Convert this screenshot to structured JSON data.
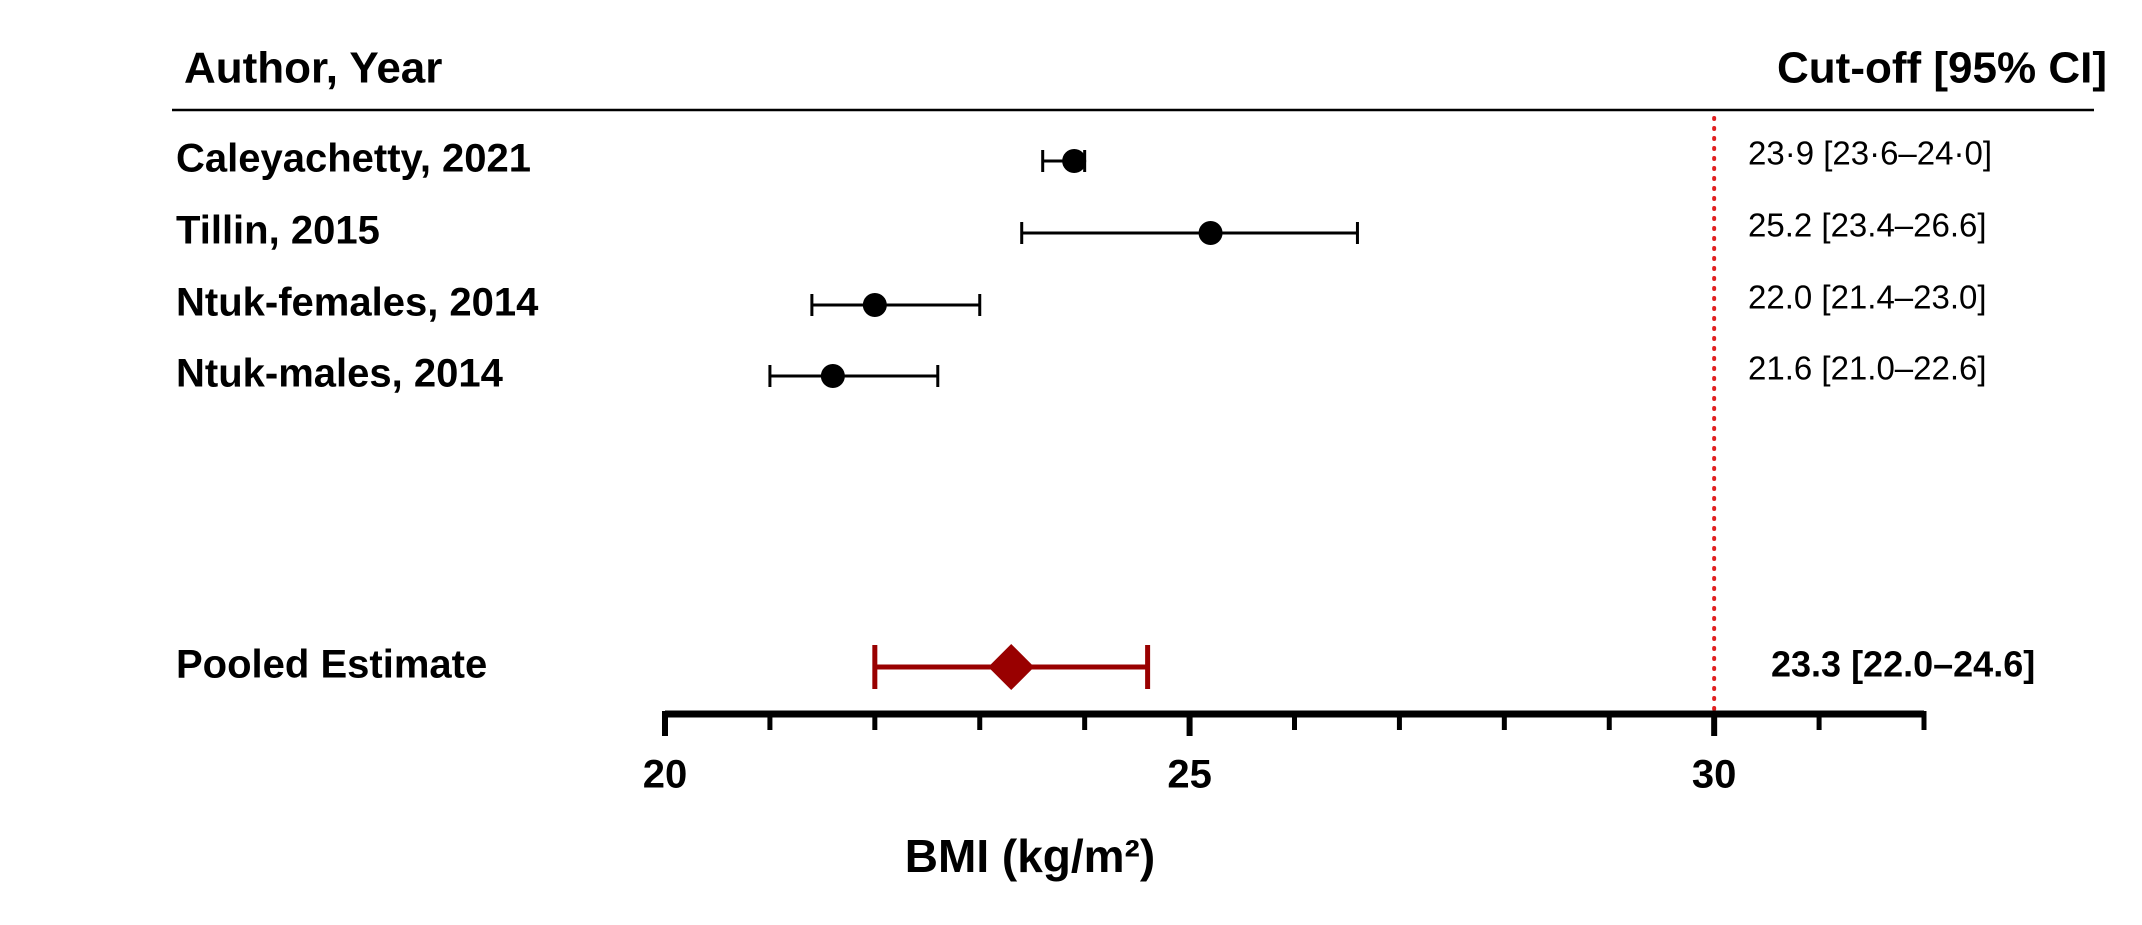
{
  "chart_data": {
    "type": "forest",
    "left_header": "Author, Year",
    "right_header": "Cut-off [95% CI]",
    "studies": [
      {
        "name": "Caleyachetty, 2021",
        "estimate": 23.9,
        "lower": 23.6,
        "upper": 24.0,
        "label": "23·9 [23·6–24·0]"
      },
      {
        "name": "Tillin, 2015",
        "estimate": 25.2,
        "lower": 23.4,
        "upper": 26.6,
        "label": "25.2 [23.4–26.6]"
      },
      {
        "name": "Ntuk-females, 2014",
        "estimate": 22.0,
        "lower": 21.4,
        "upper": 23.0,
        "label": "22.0 [21.4–23.0]"
      },
      {
        "name": "Ntuk-males, 2014",
        "estimate": 21.6,
        "lower": 21.0,
        "upper": 22.6,
        "label": "21.6 [21.0–22.6]"
      }
    ],
    "study_color": "#000000",
    "pooled": {
      "name": "Pooled Estimate",
      "estimate": 23.3,
      "lower": 22.0,
      "upper": 24.6,
      "label": "23.3 [22.0–24.6]",
      "color": "#990000"
    },
    "reference_line": 30,
    "reference_color": "#e02020",
    "xlabel": "BMI (kg/m²)",
    "xlim": [
      20,
      32
    ],
    "xticks": [
      20,
      25,
      30
    ],
    "xminor_ticks": [
      21,
      22,
      23,
      24,
      26,
      27,
      28,
      29,
      31,
      32
    ]
  }
}
